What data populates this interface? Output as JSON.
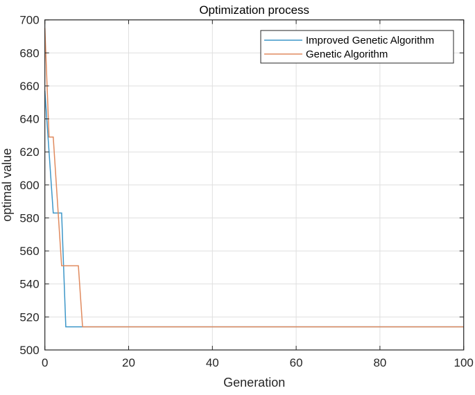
{
  "chart_data": {
    "type": "line",
    "title": "Optimization process",
    "xlabel": "Generation",
    "ylabel": "optimal value",
    "xlim": [
      0,
      100
    ],
    "ylim": [
      500,
      700
    ],
    "xticks": [
      0,
      20,
      40,
      60,
      80,
      100
    ],
    "yticks": [
      500,
      520,
      540,
      560,
      580,
      600,
      620,
      640,
      660,
      680,
      700
    ],
    "grid": true,
    "legend_position": "upper right",
    "series": [
      {
        "name": "Improved Genetic Algorithm",
        "color": "#0072BD",
        "x": [
          0,
          2,
          4,
          5,
          100
        ],
        "y": [
          657,
          583,
          583,
          514,
          514
        ]
      },
      {
        "name": "Genetic Algorithm",
        "color": "#D95319",
        "x": [
          0,
          1,
          2,
          4,
          8,
          9,
          100
        ],
        "y": [
          695,
          629,
          629,
          551,
          551,
          514,
          514
        ]
      }
    ]
  },
  "legend": {
    "items": [
      {
        "label": "Improved Genetic Algorithm",
        "color": "#3C96C8"
      },
      {
        "label": "Genetic Algorithm",
        "color": "#E08A5E"
      }
    ]
  }
}
